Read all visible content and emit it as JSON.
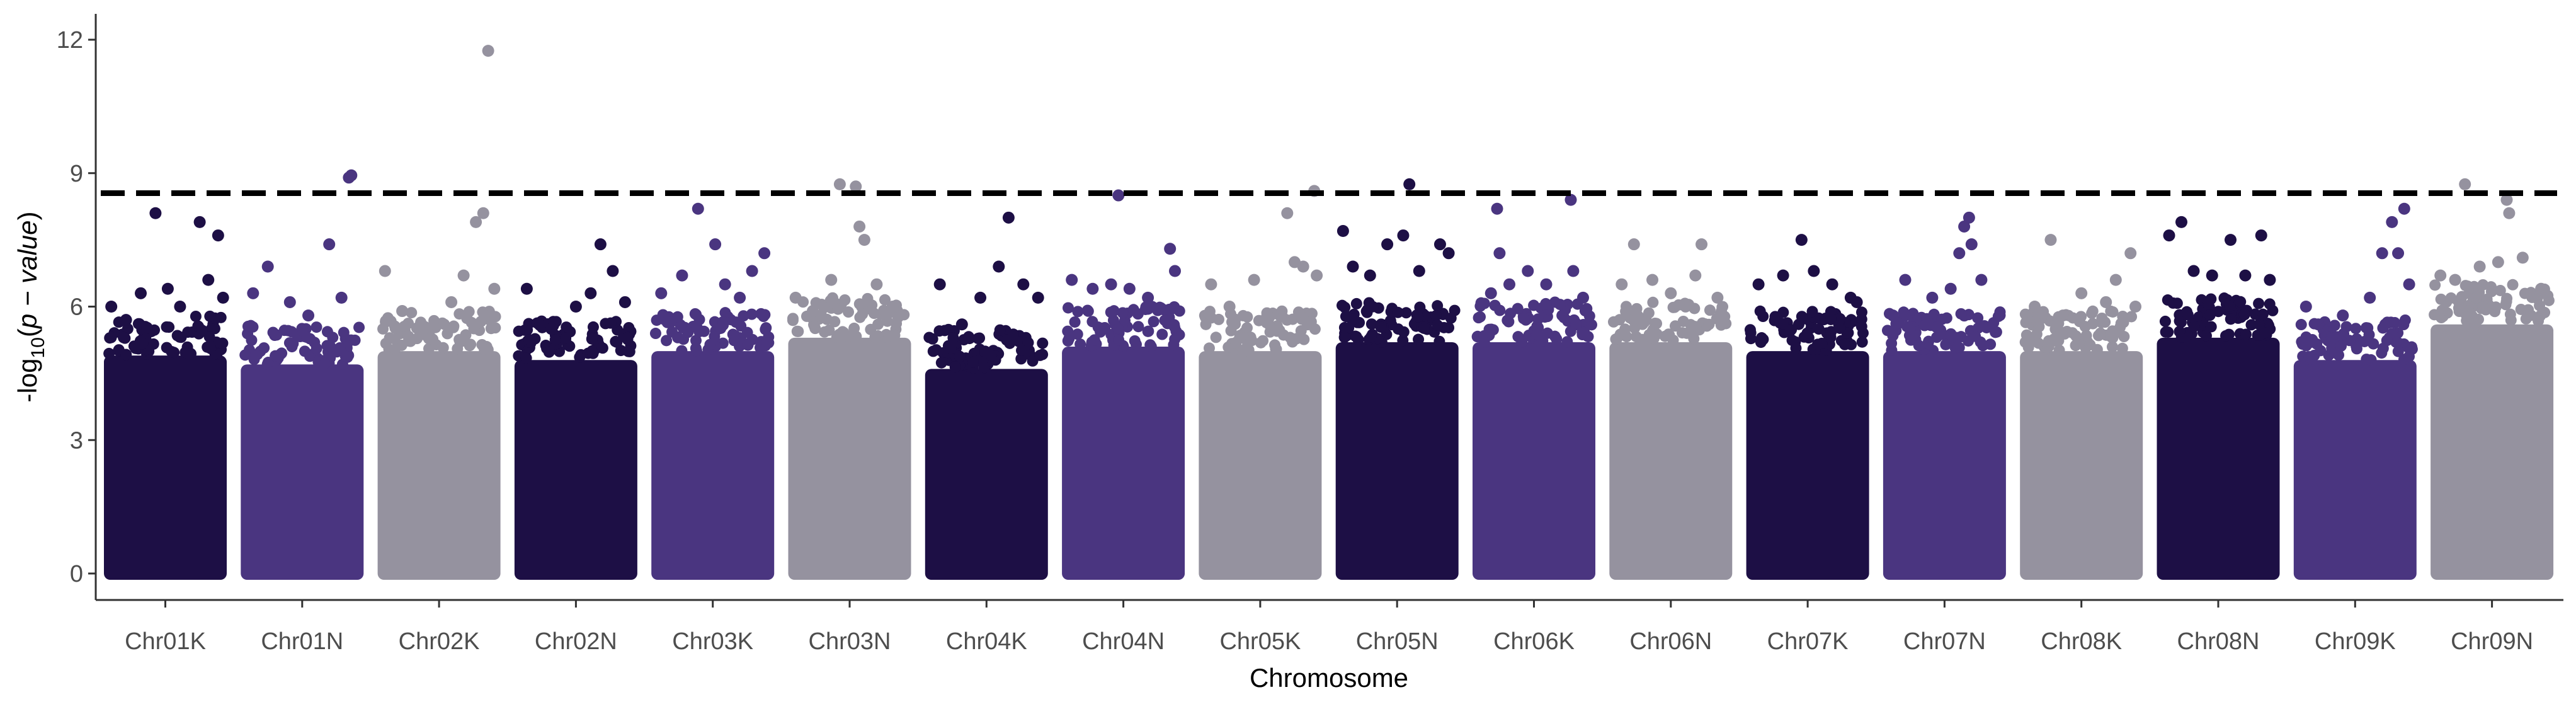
{
  "chart_data": {
    "type": "scatter",
    "subtype": "manhattan",
    "title": "",
    "xlabel": "Chromosome",
    "ylabel": "-log10(p-value)",
    "ylabel_parts": {
      "prefix": "-log",
      "sub": "10",
      "open": "(",
      "italic": "p − value",
      "close": ")"
    },
    "ylim": [
      -0.5,
      12.4
    ],
    "yticks": [
      0,
      3,
      6,
      9,
      12
    ],
    "grid": false,
    "legend": "none",
    "threshold": 8.55,
    "threshold_style": "dashed",
    "palette": [
      "#1d0f45",
      "#4a3580",
      "#95929f"
    ],
    "categories": [
      "Chr01K",
      "Chr01N",
      "Chr02K",
      "Chr02N",
      "Chr03K",
      "Chr03N",
      "Chr04K",
      "Chr04N",
      "Chr05K",
      "Chr05N",
      "Chr06K",
      "Chr06N",
      "Chr07K",
      "Chr07N",
      "Chr08K",
      "Chr08N",
      "Chr09K",
      "Chr09N"
    ],
    "series": [
      {
        "chromosome": "Chr01K",
        "color": "#1d0f45",
        "dense_top": 4.9,
        "peaks": [
          [
            0.06,
            6.0
          ],
          [
            0.18,
            5.7
          ],
          [
            0.3,
            6.3
          ],
          [
            0.42,
            8.1
          ],
          [
            0.52,
            6.4
          ],
          [
            0.62,
            6.0
          ],
          [
            0.78,
            7.9
          ],
          [
            0.85,
            6.6
          ],
          [
            0.93,
            7.6
          ],
          [
            0.97,
            6.2
          ]
        ]
      },
      {
        "chromosome": "Chr01N",
        "color": "#4a3580",
        "dense_top": 4.7,
        "peaks": [
          [
            0.1,
            6.3
          ],
          [
            0.22,
            6.9
          ],
          [
            0.4,
            6.1
          ],
          [
            0.55,
            5.8
          ],
          [
            0.72,
            7.4
          ],
          [
            0.82,
            6.2
          ],
          [
            0.88,
            8.9
          ],
          [
            0.9,
            8.95
          ]
        ]
      },
      {
        "chromosome": "Chr02K",
        "color": "#95929f",
        "dense_top": 5.0,
        "peaks": [
          [
            0.06,
            6.8
          ],
          [
            0.2,
            5.9
          ],
          [
            0.38,
            5.5
          ],
          [
            0.6,
            6.1
          ],
          [
            0.7,
            6.7
          ],
          [
            0.8,
            7.9
          ],
          [
            0.86,
            8.1
          ],
          [
            0.9,
            11.75
          ],
          [
            0.95,
            6.4
          ]
        ]
      },
      {
        "chromosome": "Chr02N",
        "color": "#1d0f45",
        "dense_top": 4.8,
        "peaks": [
          [
            0.1,
            6.4
          ],
          [
            0.3,
            5.5
          ],
          [
            0.5,
            6.0
          ],
          [
            0.62,
            6.3
          ],
          [
            0.7,
            7.4
          ],
          [
            0.8,
            6.8
          ],
          [
            0.9,
            6.1
          ]
        ]
      },
      {
        "chromosome": "Chr03K",
        "color": "#4a3580",
        "dense_top": 5.0,
        "peaks": [
          [
            0.08,
            6.3
          ],
          [
            0.25,
            6.7
          ],
          [
            0.38,
            8.2
          ],
          [
            0.52,
            7.4
          ],
          [
            0.6,
            6.5
          ],
          [
            0.72,
            6.2
          ],
          [
            0.82,
            6.8
          ],
          [
            0.92,
            7.2
          ]
        ]
      },
      {
        "chromosome": "Chr03N",
        "color": "#95929f",
        "dense_top": 5.3,
        "peaks": [
          [
            0.06,
            6.2
          ],
          [
            0.2,
            5.9
          ],
          [
            0.35,
            6.6
          ],
          [
            0.42,
            8.75
          ],
          [
            0.55,
            8.7
          ],
          [
            0.58,
            7.8
          ],
          [
            0.62,
            7.5
          ],
          [
            0.72,
            6.5
          ],
          [
            0.85,
            6.0
          ]
        ]
      },
      {
        "chromosome": "Chr04K",
        "color": "#1d0f45",
        "dense_top": 4.6,
        "peaks": [
          [
            0.12,
            6.5
          ],
          [
            0.3,
            5.6
          ],
          [
            0.45,
            6.2
          ],
          [
            0.6,
            6.9
          ],
          [
            0.68,
            8.0
          ],
          [
            0.8,
            6.5
          ],
          [
            0.92,
            6.2
          ]
        ]
      },
      {
        "chromosome": "Chr04N",
        "color": "#4a3580",
        "dense_top": 5.1,
        "peaks": [
          [
            0.08,
            6.6
          ],
          [
            0.25,
            6.4
          ],
          [
            0.4,
            6.5
          ],
          [
            0.46,
            8.5
          ],
          [
            0.55,
            6.4
          ],
          [
            0.7,
            6.2
          ],
          [
            0.88,
            7.3
          ],
          [
            0.92,
            6.8
          ]
        ]
      },
      {
        "chromosome": "Chr05K",
        "color": "#95929f",
        "dense_top": 5.0,
        "peaks": [
          [
            0.1,
            6.5
          ],
          [
            0.25,
            6.0
          ],
          [
            0.45,
            6.6
          ],
          [
            0.72,
            8.1
          ],
          [
            0.78,
            7.0
          ],
          [
            0.85,
            6.9
          ],
          [
            0.94,
            8.6
          ],
          [
            0.96,
            6.7
          ]
        ]
      },
      {
        "chromosome": "Chr05N",
        "color": "#1d0f45",
        "dense_top": 5.2,
        "peaks": [
          [
            0.06,
            7.7
          ],
          [
            0.14,
            6.9
          ],
          [
            0.28,
            6.7
          ],
          [
            0.42,
            7.4
          ],
          [
            0.55,
            7.6
          ],
          [
            0.6,
            8.75
          ],
          [
            0.68,
            6.8
          ],
          [
            0.85,
            7.4
          ],
          [
            0.92,
            7.2
          ]
        ]
      },
      {
        "chromosome": "Chr06K",
        "color": "#4a3580",
        "dense_top": 5.2,
        "peaks": [
          [
            0.15,
            6.3
          ],
          [
            0.2,
            8.2
          ],
          [
            0.22,
            7.2
          ],
          [
            0.3,
            6.5
          ],
          [
            0.45,
            6.8
          ],
          [
            0.6,
            6.5
          ],
          [
            0.8,
            8.4
          ],
          [
            0.82,
            6.8
          ],
          [
            0.9,
            6.2
          ]
        ]
      },
      {
        "chromosome": "Chr06N",
        "color": "#95929f",
        "dense_top": 5.2,
        "peaks": [
          [
            0.1,
            6.5
          ],
          [
            0.2,
            7.4
          ],
          [
            0.35,
            6.6
          ],
          [
            0.5,
            6.3
          ],
          [
            0.7,
            6.7
          ],
          [
            0.75,
            7.4
          ],
          [
            0.88,
            6.2
          ]
        ]
      },
      {
        "chromosome": "Chr07K",
        "color": "#1d0f45",
        "dense_top": 5.0,
        "peaks": [
          [
            0.1,
            6.5
          ],
          [
            0.3,
            6.7
          ],
          [
            0.45,
            7.5
          ],
          [
            0.55,
            6.8
          ],
          [
            0.7,
            6.5
          ],
          [
            0.85,
            6.2
          ],
          [
            0.9,
            6.1
          ]
        ]
      },
      {
        "chromosome": "Chr07N",
        "color": "#4a3580",
        "dense_top": 5.0,
        "peaks": [
          [
            0.08,
            5.8
          ],
          [
            0.18,
            6.6
          ],
          [
            0.4,
            6.2
          ],
          [
            0.55,
            6.4
          ],
          [
            0.62,
            7.2
          ],
          [
            0.66,
            7.8
          ],
          [
            0.7,
            8.0
          ],
          [
            0.72,
            7.4
          ],
          [
            0.8,
            6.6
          ]
        ]
      },
      {
        "chromosome": "Chr08K",
        "color": "#95929f",
        "dense_top": 5.0,
        "peaks": [
          [
            0.12,
            6.0
          ],
          [
            0.25,
            7.5
          ],
          [
            0.35,
            5.8
          ],
          [
            0.5,
            6.3
          ],
          [
            0.7,
            6.1
          ],
          [
            0.78,
            6.6
          ],
          [
            0.9,
            7.2
          ],
          [
            0.94,
            6.0
          ]
        ]
      },
      {
        "chromosome": "Chr08N",
        "color": "#1d0f45",
        "dense_top": 5.3,
        "peaks": [
          [
            0.1,
            7.6
          ],
          [
            0.2,
            7.9
          ],
          [
            0.3,
            6.8
          ],
          [
            0.45,
            6.7
          ],
          [
            0.6,
            7.5
          ],
          [
            0.72,
            6.7
          ],
          [
            0.85,
            7.6
          ],
          [
            0.92,
            6.6
          ]
        ]
      },
      {
        "chromosome": "Chr09K",
        "color": "#4a3580",
        "dense_top": 4.8,
        "peaks": [
          [
            0.1,
            6.0
          ],
          [
            0.2,
            5.6
          ],
          [
            0.4,
            5.8
          ],
          [
            0.62,
            6.2
          ],
          [
            0.72,
            7.2
          ],
          [
            0.8,
            7.9
          ],
          [
            0.85,
            7.2
          ],
          [
            0.9,
            8.2
          ],
          [
            0.94,
            6.5
          ]
        ]
      },
      {
        "chromosome": "Chr09N",
        "color": "#95929f",
        "dense_top": 5.6,
        "peaks": [
          [
            0.08,
            6.7
          ],
          [
            0.2,
            6.6
          ],
          [
            0.28,
            8.75
          ],
          [
            0.4,
            6.9
          ],
          [
            0.55,
            7.0
          ],
          [
            0.62,
            8.4
          ],
          [
            0.64,
            8.1
          ],
          [
            0.75,
            7.1
          ],
          [
            0.9,
            6.4
          ]
        ]
      }
    ]
  }
}
